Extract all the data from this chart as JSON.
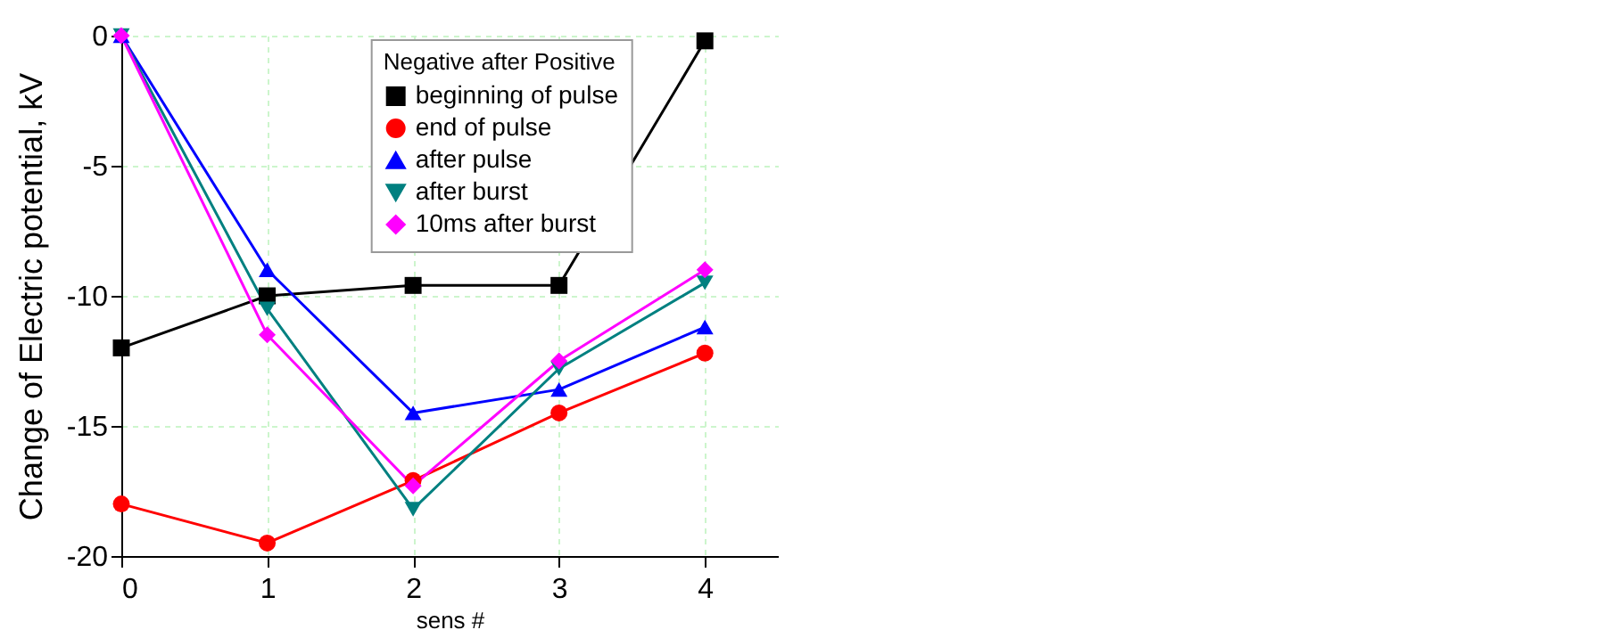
{
  "chart_data": {
    "type": "line",
    "xlabel": "sens #",
    "ylabel": "Change of Electric potential, kV",
    "legend_title": "Negative after Positive",
    "x": [
      0,
      1,
      2,
      3,
      4
    ],
    "xlim": [
      0,
      4.5
    ],
    "xticks": [
      0,
      1,
      2,
      3,
      4
    ],
    "ylim": [
      -20,
      0
    ],
    "yticks": [
      -20,
      -15,
      -10,
      -5,
      0
    ],
    "grid": true,
    "legend": "top",
    "series": [
      {
        "name": "beginning of pulse",
        "color": "#000000",
        "marker": "square",
        "values": [
          -12,
          -10,
          -9.6,
          -9.6,
          -0.2
        ]
      },
      {
        "name": "end of pulse",
        "color": "#ff0000",
        "marker": "circle",
        "values": [
          -18,
          -19.5,
          -17.1,
          -14.5,
          -12.2
        ]
      },
      {
        "name": "after pulse",
        "color": "#0000ff",
        "marker": "triangle",
        "values": [
          0,
          -9,
          -14.5,
          -13.6,
          -11.2
        ]
      },
      {
        "name": "after burst",
        "color": "#008080",
        "marker": "triangle-down",
        "values": [
          0,
          -10.5,
          -18.2,
          -12.8,
          -9.5
        ]
      },
      {
        "name": "10ms after burst",
        "color": "#ff00ff",
        "marker": "diamond",
        "values": [
          0,
          -11.5,
          -17.3,
          -12.5,
          -9
        ]
      }
    ]
  }
}
